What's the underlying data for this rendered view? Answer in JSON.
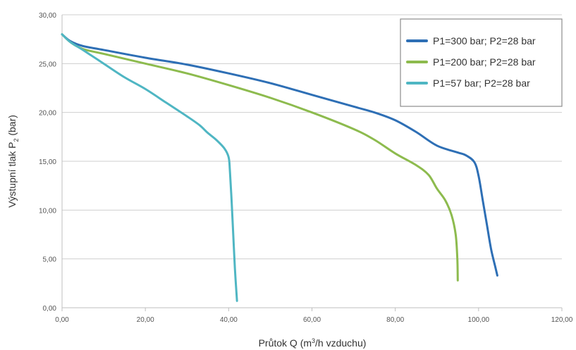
{
  "chart_data": {
    "type": "line",
    "title": "",
    "xlabel": {
      "prefix": "Průtok Q (m",
      "sup": "3",
      "suffix": "/h vzduchu)"
    },
    "ylabel": {
      "prefix": "Výstupní tlak P",
      "sub": "2",
      "suffix": " (bar)"
    },
    "xlim": [
      0,
      120
    ],
    "ylim": [
      0,
      30
    ],
    "x_ticks": [
      "0,00",
      "20,00",
      "40,00",
      "60,00",
      "80,00",
      "100,00",
      "120,00"
    ],
    "y_ticks": [
      "0,00",
      "5,00",
      "10,00",
      "15,00",
      "20,00",
      "25,00",
      "30,00"
    ],
    "grid": "horizontal",
    "legend_position": "top-right",
    "series": [
      {
        "name": "P1=300 bar; P2=28 bar",
        "color": "#2e6fb5",
        "points": [
          [
            0,
            28
          ],
          [
            2,
            27.3
          ],
          [
            5,
            26.8
          ],
          [
            10,
            26.4
          ],
          [
            20,
            25.6
          ],
          [
            30,
            24.9
          ],
          [
            40,
            24.0
          ],
          [
            50,
            23.0
          ],
          [
            60,
            21.8
          ],
          [
            70,
            20.6
          ],
          [
            75,
            20.0
          ],
          [
            80,
            19.2
          ],
          [
            85,
            18.0
          ],
          [
            90,
            16.6
          ],
          [
            95,
            15.9
          ],
          [
            97,
            15.6
          ],
          [
            99,
            14.9
          ],
          [
            100,
            13.5
          ],
          [
            101,
            11.0
          ],
          [
            102,
            8.5
          ],
          [
            103,
            6.0
          ],
          [
            104,
            4.2
          ],
          [
            104.5,
            3.3
          ]
        ]
      },
      {
        "name": "P1=200 bar; P2=28 bar",
        "color": "#8dbb4e",
        "points": [
          [
            0,
            28
          ],
          [
            2,
            27.2
          ],
          [
            5,
            26.5
          ],
          [
            10,
            26.0
          ],
          [
            20,
            25.0
          ],
          [
            30,
            24.0
          ],
          [
            40,
            22.8
          ],
          [
            50,
            21.5
          ],
          [
            60,
            20.0
          ],
          [
            70,
            18.3
          ],
          [
            75,
            17.2
          ],
          [
            80,
            15.8
          ],
          [
            85,
            14.6
          ],
          [
            88,
            13.6
          ],
          [
            90,
            12.2
          ],
          [
            92,
            11.0
          ],
          [
            93.5,
            9.5
          ],
          [
            94.5,
            7.5
          ],
          [
            94.9,
            5.0
          ],
          [
            95,
            2.8
          ]
        ]
      },
      {
        "name": "P1=57 bar; P2=28 bar",
        "color": "#4fb6c3",
        "points": [
          [
            0,
            28
          ],
          [
            2,
            27.2
          ],
          [
            5,
            26.4
          ],
          [
            10,
            25.0
          ],
          [
            15,
            23.6
          ],
          [
            20,
            22.4
          ],
          [
            25,
            21.0
          ],
          [
            30,
            19.6
          ],
          [
            33,
            18.7
          ],
          [
            35,
            17.9
          ],
          [
            37,
            17.2
          ],
          [
            39,
            16.3
          ],
          [
            40,
            15.4
          ],
          [
            40.3,
            14.0
          ],
          [
            40.7,
            11.0
          ],
          [
            41.1,
            7.5
          ],
          [
            41.5,
            4.0
          ],
          [
            42,
            0.7
          ]
        ]
      }
    ]
  }
}
